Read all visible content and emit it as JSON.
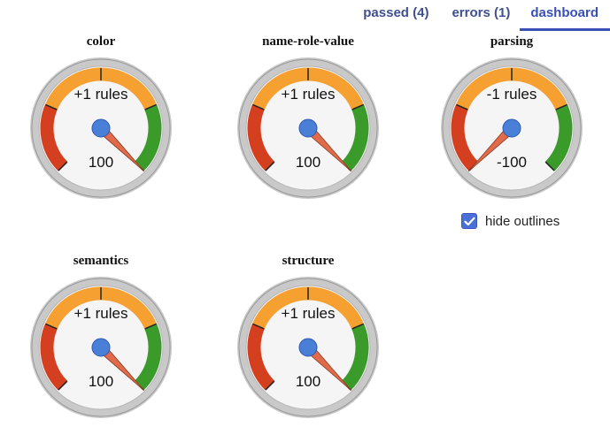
{
  "tabs": [
    {
      "label": "passed (4)",
      "active": false
    },
    {
      "label": "errors (1)",
      "active": false
    },
    {
      "label": "dashboard",
      "active": true
    }
  ],
  "gauges": [
    {
      "title": "color",
      "label": "+1 rules",
      "value_text": "100",
      "needle_value": 100
    },
    {
      "title": "name-role-value",
      "label": "+1 rules",
      "value_text": "100",
      "needle_value": 100
    },
    {
      "title": "parsing",
      "label": "-1 rules",
      "value_text": "-100",
      "needle_value": -100
    },
    {
      "title": "semantics",
      "label": "+1 rules",
      "value_text": "100",
      "needle_value": 100
    },
    {
      "title": "structure",
      "label": "+1 rules",
      "value_text": "100",
      "needle_value": 100
    }
  ],
  "gauge_colors": {
    "red": "#d4401f",
    "orange": "#f5a030",
    "green": "#3a9a2a",
    "hub": "#4a7fd8",
    "needle": "#e06a4a"
  },
  "hide_outlines": {
    "label": "hide outlines",
    "checked": true
  }
}
